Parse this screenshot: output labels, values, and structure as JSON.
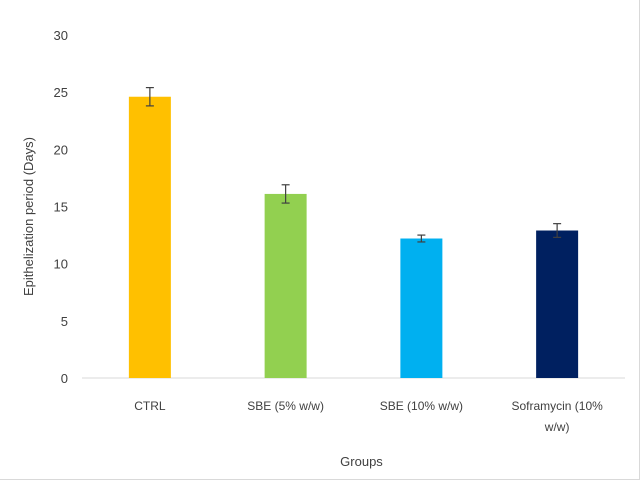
{
  "chart_data": {
    "type": "bar",
    "categories": [
      "CTRL",
      "SBE (5% w/w)",
      "SBE (10% w/w)",
      "Soframycin (10% w/w)"
    ],
    "category_lines": [
      [
        "CTRL"
      ],
      [
        "SBE (5% w/w)"
      ],
      [
        "SBE (10% w/w)"
      ],
      [
        "Soframycin (10%",
        "w/w)"
      ]
    ],
    "values": [
      24.6,
      16.1,
      12.2,
      12.9
    ],
    "errors": [
      0.8,
      0.8,
      0.3,
      0.6
    ],
    "bar_colors": [
      "#FFC000",
      "#92D050",
      "#00B0F0",
      "#002060"
    ],
    "title": "",
    "xlabel": "Groups",
    "ylabel": "Epithelization period (Days)",
    "ylim": [
      0,
      30
    ],
    "yticks": [
      0,
      5,
      10,
      15,
      20,
      25,
      30
    ],
    "grid": false
  }
}
